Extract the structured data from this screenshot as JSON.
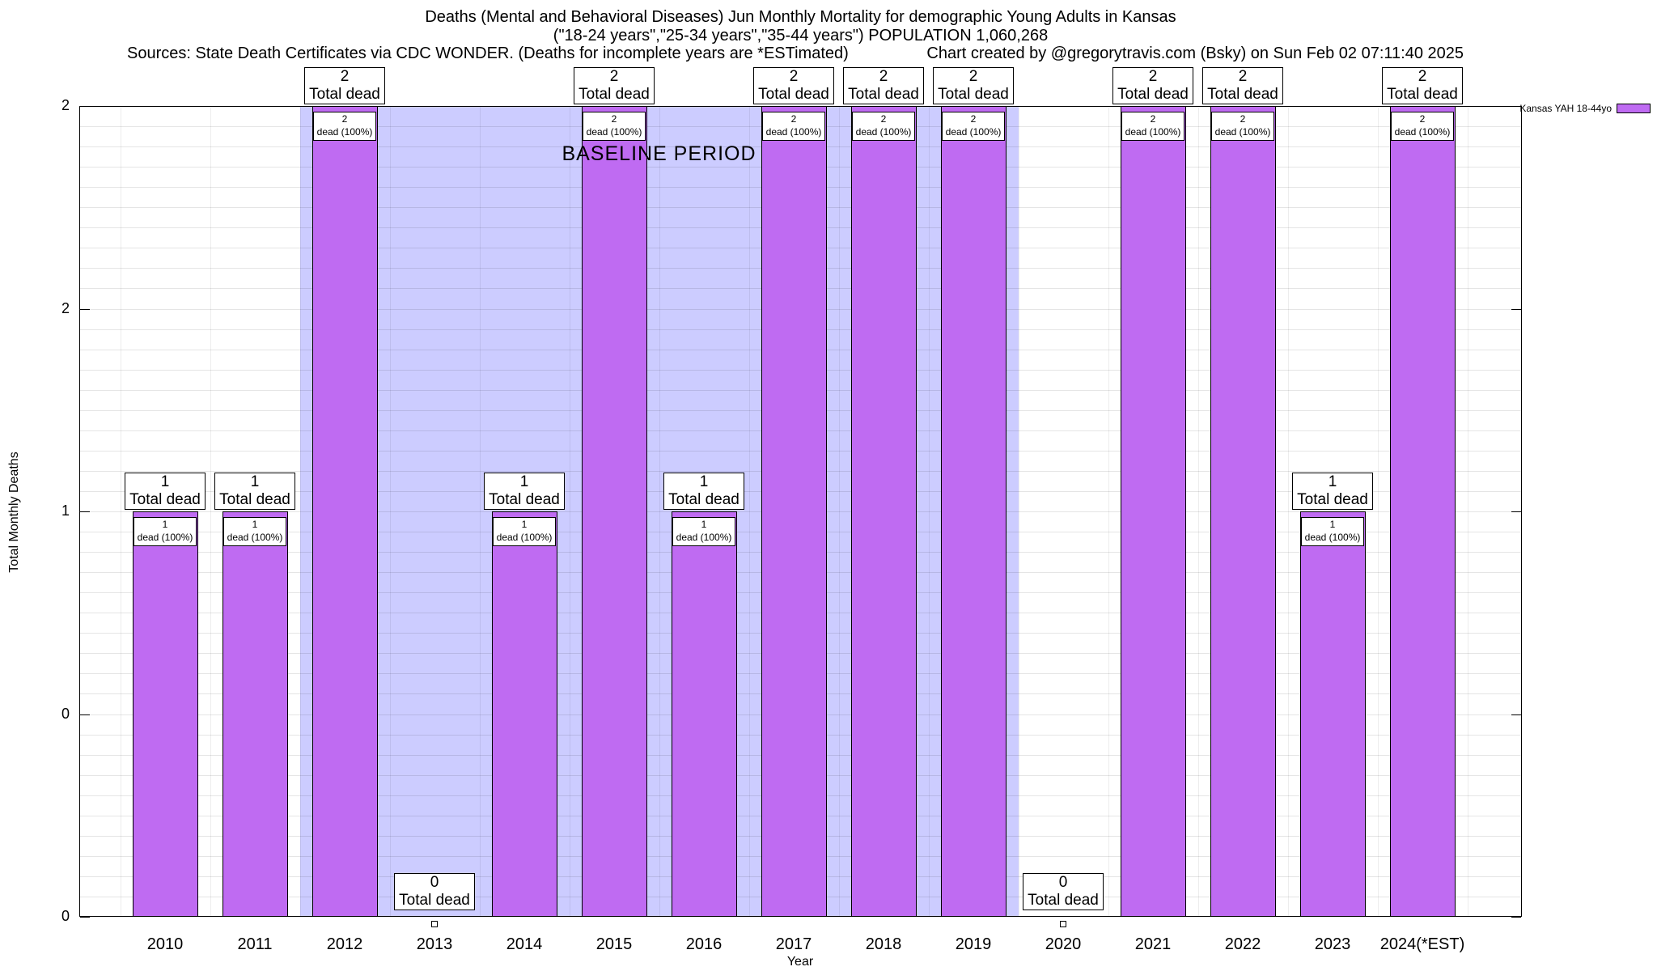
{
  "titles": {
    "line1": "Deaths (Mental and Behavioral Diseases) Jun Monthly Mortality for demographic Young Adults in Kansas",
    "line2": "(\"18-24 years\",\"25-34 years\",\"35-44 years\") POPULATION 1,060,268",
    "line3_left": "Sources: State Death Certificates via CDC WONDER. (Deaths for incomplete years are *ESTimated)",
    "line3_right": "Chart created by @gregorytravis.com (Bsky) on Sun Feb 02 07:11:40 2025"
  },
  "legend": {
    "label": "Kansas YAH 18-44yo",
    "swatch_color": "#bf6bf2"
  },
  "chart_data": {
    "type": "bar",
    "title": "Deaths (Mental and Behavioral Diseases) Jun Monthly Mortality for demographic Young Adults in Kansas",
    "subtitle": "(\"18-24 years\",\"25-34 years\",\"35-44 years\") POPULATION 1,060,268",
    "xlabel": "Year",
    "ylabel": "Total Monthly Deaths",
    "ylim": [
      0,
      2
    ],
    "yticks": [
      {
        "value": 0,
        "label": "0"
      },
      {
        "value": 0.5,
        "label": "0"
      },
      {
        "value": 1,
        "label": "1"
      },
      {
        "value": 1.5,
        "label": "2"
      },
      {
        "value": 2,
        "label": "2"
      }
    ],
    "categories": [
      "2010",
      "2011",
      "2012",
      "2013",
      "2014",
      "2015",
      "2016",
      "2017",
      "2018",
      "2019",
      "2020",
      "2021",
      "2022",
      "2023",
      "2024(*EST)"
    ],
    "series": [
      {
        "name": "Kansas YAH 18-44yo",
        "values": [
          1,
          1,
          2,
          0,
          1,
          2,
          1,
          2,
          2,
          2,
          0,
          2,
          2,
          1,
          2
        ],
        "color": "#bf6bf2"
      }
    ],
    "bar_annotation_top": "Total dead",
    "bar_annotation_inner": "dead (100%)",
    "baseline_band": {
      "label": "BASELINE PERIOD",
      "from": "2012",
      "to": "2019",
      "color": "#ccccff"
    },
    "grid": true,
    "legend_position": "top-right-outside",
    "background": "#ffffff"
  }
}
